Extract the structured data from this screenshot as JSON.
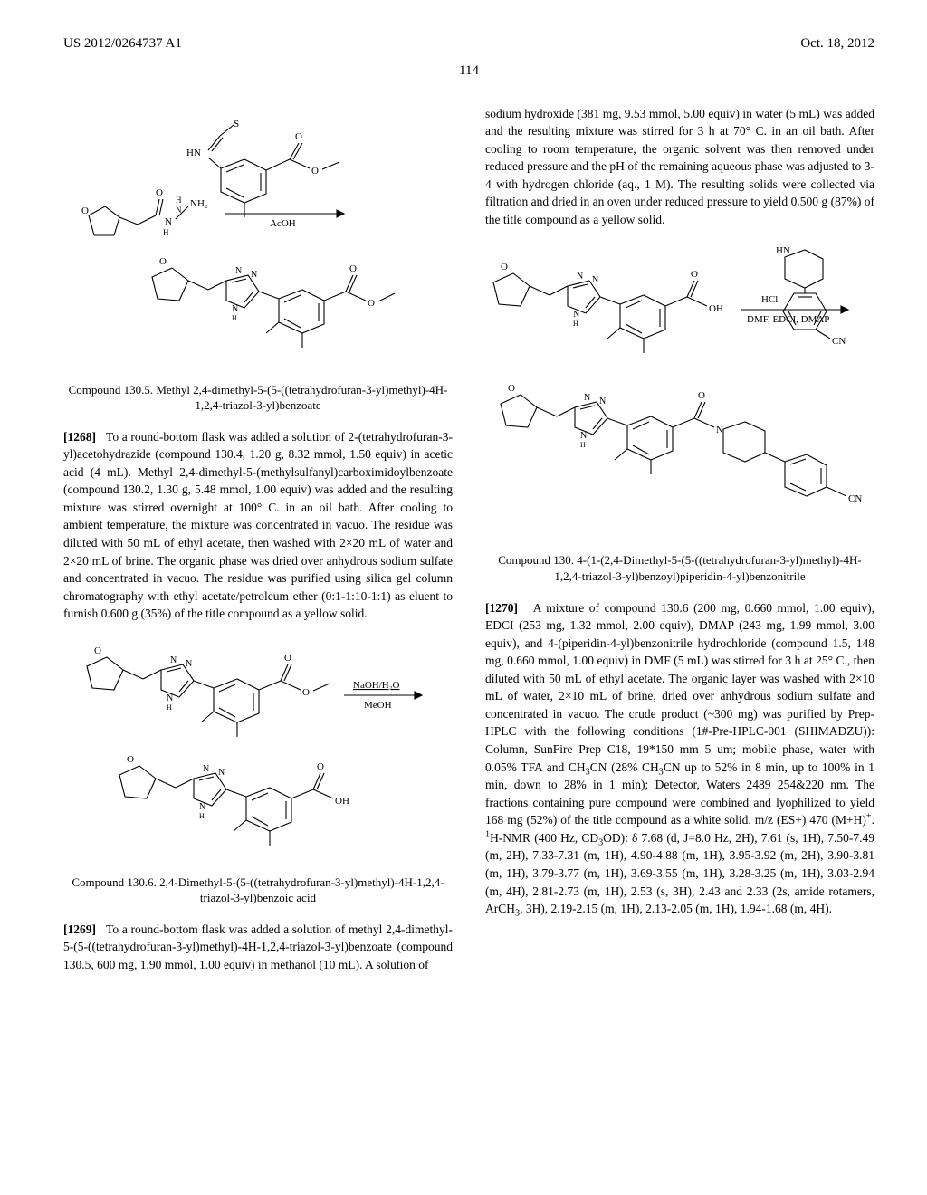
{
  "header": {
    "left": "US 2012/0264737 A1",
    "right": "Oct. 18, 2012"
  },
  "page_number": "114",
  "left_col": {
    "scheme1": {
      "reactant1_label": "",
      "reagent_top": "",
      "reagent_bottom": "AcOH",
      "arrow": {
        "length": 120,
        "stroke": "#000000"
      },
      "colors": {
        "bond": "#000000",
        "text": "#000000"
      }
    },
    "title1": "Compound 130.5. Methyl 2,4-dimethyl-5-(5-((tetrahydrofuran-3-yl)methyl)-4H-1,2,4-triazol-3-yl)benzoate",
    "para1_num": "[1268]",
    "para1_text": "To a round-bottom flask was added a solution of 2-(tetrahydrofuran-3-yl)acetohydrazide (compound 130.4, 1.20 g, 8.32 mmol, 1.50 equiv) in acetic acid (4 mL). Methyl 2,4-dimethyl-5-(methylsulfanyl)carboximidoylbenzoate (compound 130.2, 1.30 g, 5.48 mmol, 1.00 equiv) was added and the resulting mixture was stirred overnight at 100° C. in an oil bath. After cooling to ambient temperature, the mixture was concentrated in vacuo. The residue was diluted with 50 mL of ethyl acetate, then washed with 2×20 mL of water and 2×20 mL of brine. The organic phase was dried over anhydrous sodium sulfate and concentrated in vacuo. The residue was purified using silica gel column chromatography with ethyl acetate/petroleum ether (0:1-1:10-1:1) as eluent to furnish 0.600 g (35%) of the title compound as a yellow solid.",
    "scheme2": {
      "reagent_top": "NaOH/H₂O",
      "reagent_bottom": "MeOH",
      "arrow": {
        "length": 86,
        "stroke": "#000000"
      }
    },
    "title2": "Compound 130.6. 2,4-Dimethyl-5-(5-((tetrahydrofuran-3-yl)methyl)-4H-1,2,4-triazol-3-yl)benzoic acid",
    "para2_num": "[1269]",
    "para2_text": "To a round-bottom flask was added a solution of methyl 2,4-dimethyl-5-(5-((tetrahydrofuran-3-yl)methyl)-4H-1,2,4-triazol-3-yl)benzoate (compound 130.5, 600 mg, 1.90 mmol, 1.00 equiv) in methanol (10 mL). A solution of"
  },
  "right_col": {
    "para0_text": "sodium hydroxide (381 mg, 9.53 mmol, 5.00 equiv) in water (5 mL) was added and the resulting mixture was stirred for 3 h at 70° C. in an oil bath. After cooling to room temperature, the organic solvent was then removed under reduced pressure and the pH of the remaining aqueous phase was adjusted to 3-4 with hydrogen chloride (aq., 1 M). The resulting solids were collected via filtration and dried in an oven under reduced pressure to yield 0.500 g (87%) of the title compound as a yellow solid.",
    "scheme3": {
      "reagent_top": "HCl",
      "reagent_bottom": "DMF, EDCI, DMAP",
      "arrow": {
        "length": 116,
        "stroke": "#000000"
      }
    },
    "title3": "Compound 130. 4-(1-(2,4-Dimethyl-5-(5-((tetrahydrofuran-3-yl)methyl)-4H-1,2,4-triazol-3-yl)benzoyl)piperidin-4-yl)benzonitrile",
    "para3_num": "[1270]",
    "para3_html": "A mixture of compound 130.6 (200 mg, 0.660 mmol, 1.00 equiv), EDCI (253 mg, 1.32 mmol, 2.00 equiv), DMAP (243 mg, 1.99 mmol, 3.00 equiv), and 4-(piperidin-4-yl)benzonitrile hydrochloride (compound 1.5, 148 mg, 0.660 mmol, 1.00 equiv) in DMF (5 mL) was stirred for 3 h at 25° C., then diluted with 50 mL of ethyl acetate. The organic layer was washed with 2×10 mL of water, 2×10 mL of brine, dried over anhydrous sodium sulfate and concentrated in vacuo. The crude product (~300 mg) was purified by Prep-HPLC with the following conditions (1#-Pre-HPLC-001 (SHIMADZU)): Column, SunFire Prep C18, 19*150 mm 5 um; mobile phase, water with 0.05% TFA and CH<sub>3</sub>CN (28% CH<sub>3</sub>CN up to 52% in 8 min, up to 100% in 1 min, down to 28% in 1 min); Detector, Waters 2489 254&220 nm. The fractions containing pure compound were combined and lyophilized to yield 168 mg (52%) of the title compound as a white solid. m/z (ES+) 470 (M+H)<sup>+</sup>. <sup>1</sup>H-NMR (400 Hz, CD<sub>3</sub>OD): δ 7.68 (d, J=8.0 Hz, 2H), 7.61 (s, 1H), 7.50-7.49 (m, 2H), 7.33-7.31 (m, 1H), 4.90-4.88 (m, 1H), 3.95-3.92 (m, 2H), 3.90-3.81 (m, 1H), 3.79-3.77 (m, 1H), 3.69-3.55 (m, 1H), 3.28-3.25 (m, 1H), 3.03-2.94 (m, 4H), 2.81-2.73 (m, 1H), 2.53 (s, 3H), 2.43 and 2.33 (2s, amide rotamers, ArCH<sub>3</sub>, 3H), 2.19-2.15 (m, 1H), 2.13-2.05 (m, 1H), 1.94-1.68 (m, 4H)."
  },
  "svg_style": {
    "stroke": "#000000",
    "stroke_width": 1.1,
    "fill": "none",
    "font_size": 11,
    "label_font_size": 10
  }
}
